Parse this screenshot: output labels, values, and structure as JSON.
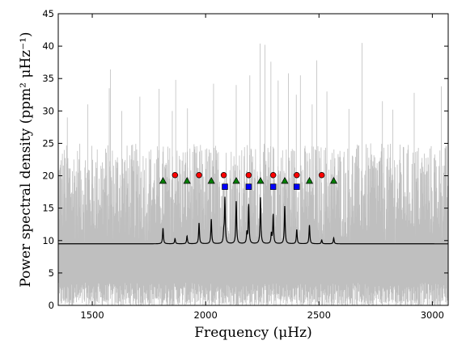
{
  "chart_data": {
    "type": "line",
    "xlabel": "Frequency (μHz)",
    "ylabel": "Power spectral density (ppm² μHz⁻¹)",
    "xlim": [
      1350,
      3070
    ],
    "ylim": [
      0,
      45
    ],
    "x_ticks": [
      1500,
      2000,
      2500,
      3000
    ],
    "y_ticks": [
      0,
      5,
      10,
      15,
      20,
      25,
      30,
      35,
      40,
      45
    ],
    "grid": false,
    "legend": "none",
    "series": [
      {
        "role": "noisy power spectrum",
        "color": "#bfbfbf",
        "baseline": 9.5,
        "typical_max": 25,
        "tall_spikes": [
          [
            1580,
            36.4
          ],
          [
            1575,
            33.5
          ],
          [
            1480,
            31.0
          ],
          [
            1630,
            30.0
          ],
          [
            1390,
            29.0
          ],
          [
            1710,
            32.2
          ],
          [
            1795,
            33.4
          ],
          [
            1853,
            30.0
          ],
          [
            1868,
            34.8
          ],
          [
            1920,
            30.4
          ],
          [
            2035,
            34.2
          ],
          [
            2135,
            34.0
          ],
          [
            2195,
            35.5
          ],
          [
            2240,
            40.4
          ],
          [
            2262,
            40.2
          ],
          [
            2288,
            37.6
          ],
          [
            2320,
            34.7
          ],
          [
            2365,
            35.8
          ],
          [
            2400,
            32.5
          ],
          [
            2418,
            35.5
          ],
          [
            2470,
            31.0
          ],
          [
            2490,
            37.8
          ],
          [
            2535,
            33.0
          ],
          [
            2632,
            30.3
          ],
          [
            2690,
            40.5
          ],
          [
            2780,
            31.5
          ],
          [
            2826,
            30.2
          ],
          [
            2920,
            32.8
          ],
          [
            3040,
            33.8
          ]
        ]
      },
      {
        "role": "smoothed fit",
        "color": "#000000",
        "baseline": 9.5,
        "peaks": [
          [
            1812,
            11.9
          ],
          [
            1865,
            10.3
          ],
          [
            1918,
            10.7
          ],
          [
            1971,
            12.7
          ],
          [
            2025,
            13.3
          ],
          [
            2080,
            11.0
          ],
          [
            2085,
            16.5
          ],
          [
            2135,
            16.1
          ],
          [
            2182,
            11.1
          ],
          [
            2190,
            15.5
          ],
          [
            2242,
            16.7
          ],
          [
            2290,
            11.0
          ],
          [
            2298,
            14.0
          ],
          [
            2349,
            15.3
          ],
          [
            2402,
            11.7
          ],
          [
            2458,
            12.4
          ],
          [
            2512,
            10.1
          ],
          [
            2565,
            10.4
          ]
        ]
      }
    ],
    "mode_markers": [
      {
        "marker": "triangle",
        "color": "#008000",
        "x": [
          1812,
          1918,
          2025,
          2135,
          2242,
          2349,
          2458,
          2565
        ],
        "y": [
          19.2,
          19.2,
          19.2,
          19.2,
          19.2,
          19.2,
          19.2,
          19.2
        ]
      },
      {
        "marker": "circle",
        "color": "#ff0000",
        "x": [
          1865,
          1971,
          2080,
          2190,
          2298,
          2402,
          2512
        ],
        "y": [
          20.1,
          20.1,
          20.1,
          20.1,
          20.1,
          20.1,
          20.1
        ]
      },
      {
        "marker": "square",
        "color": "#0000ff",
        "x": [
          2085,
          2190,
          2298,
          2402
        ],
        "y": [
          18.3,
          18.3,
          18.3,
          18.3
        ]
      }
    ]
  }
}
